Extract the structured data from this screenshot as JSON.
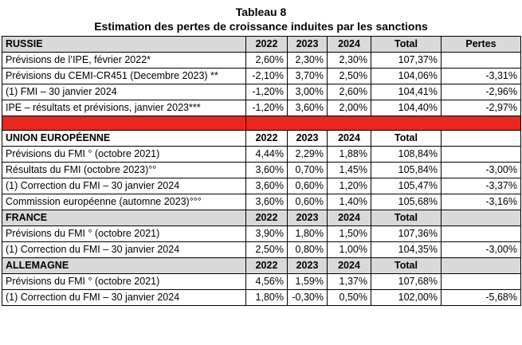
{
  "title": "Tableau 8",
  "subtitle": "Estimation des pertes de croissance induites par les sanctions",
  "colors": {
    "header_shade": "#d9d9d9",
    "separator": "#e8271e"
  },
  "sections": [
    {
      "header": {
        "label": "RUSSIE",
        "cols": [
          "2022",
          "2023",
          "2024",
          "Total",
          "Pertes"
        ]
      },
      "rows": [
        {
          "label": "Prévisions de l’IPE, février 2022*",
          "v2022": "2,60%",
          "v2023": "2,30%",
          "v2024": "2,30%",
          "total": "107,37%",
          "pertes": ""
        },
        {
          "label": "Prévisions du CEMI-CR451 (Decembre 2023) **",
          "v2022": "-2,10%",
          "v2023": "3,70%",
          "v2024": "2,50%",
          "total": "104,06%",
          "pertes": "-3,31%"
        },
        {
          "label": "(1) FMI – 30 janvier 2024",
          "v2022": "-1,20%",
          "v2023": "3,00%",
          "v2024": "2,60%",
          "total": "104,41%",
          "pertes": "-2,96%"
        },
        {
          "label": "IPE – résultats et prévisions, janvier 2023***",
          "v2022": "-1,20%",
          "v2023": "3,60%",
          "v2024": "2,00%",
          "total": "104,40%",
          "pertes": "-2,97%"
        }
      ]
    },
    {
      "header": {
        "label": "UNION EUROPÉENNE",
        "cols": [
          "2022",
          "2023",
          "2024",
          "Total",
          ""
        ]
      },
      "rows": [
        {
          "label": "Prévisions du FMI ° (octobre 2021)",
          "v2022": "4,44%",
          "v2023": "2,29%",
          "v2024": "1,88%",
          "total": "108,84%",
          "pertes": ""
        },
        {
          "label": "Résultats du FMI (octobre 2023)°°",
          "v2022": "3,60%",
          "v2023": "0,70%",
          "v2024": "1,45%",
          "total": "105,84%",
          "pertes": "-3,00%"
        },
        {
          "label": "(1) Correction du FMI – 30 janvier 2024",
          "v2022": "3,60%",
          "v2023": "0,60%",
          "v2024": "1,20%",
          "total": "105,47%",
          "pertes": "-3,37%"
        },
        {
          "label": "Commission européenne (automne 2023)°°°",
          "v2022": "3,60%",
          "v2023": "0,60%",
          "v2024": "1,40%",
          "total": "105,68%",
          "pertes": "-3,16%"
        }
      ]
    },
    {
      "header": {
        "label": "FRANCE",
        "cols": [
          "2022",
          "2023",
          "2024",
          "Total",
          ""
        ]
      },
      "rows": [
        {
          "label": "Prévisions du FMI ° (octobre 2021)",
          "v2022": "3,90%",
          "v2023": "1,80%",
          "v2024": "1,50%",
          "total": "107,36%",
          "pertes": ""
        },
        {
          "label": "(1) Correction du FMI – 30 janvier 2024",
          "v2022": "2,50%",
          "v2023": "0,80%",
          "v2024": "1,00%",
          "total": "104,35%",
          "pertes": "-3,00%"
        }
      ]
    },
    {
      "header": {
        "label": "ALLEMAGNE",
        "cols": [
          "2022",
          "2023",
          "2024",
          "Total",
          ""
        ]
      },
      "rows": [
        {
          "label": "Prévisions du FMI ° (octobre 2021)",
          "v2022": "4,56%",
          "v2023": "1,59%",
          "v2024": "1,37%",
          "total": "107,68%",
          "pertes": ""
        },
        {
          "label": "(1) Correction du FMI – 30 janvier 2024",
          "v2022": "1,80%",
          "v2023": "-0,30%",
          "v2024": "0,50%",
          "total": "102,00%",
          "pertes": "-5,68%"
        }
      ]
    }
  ]
}
